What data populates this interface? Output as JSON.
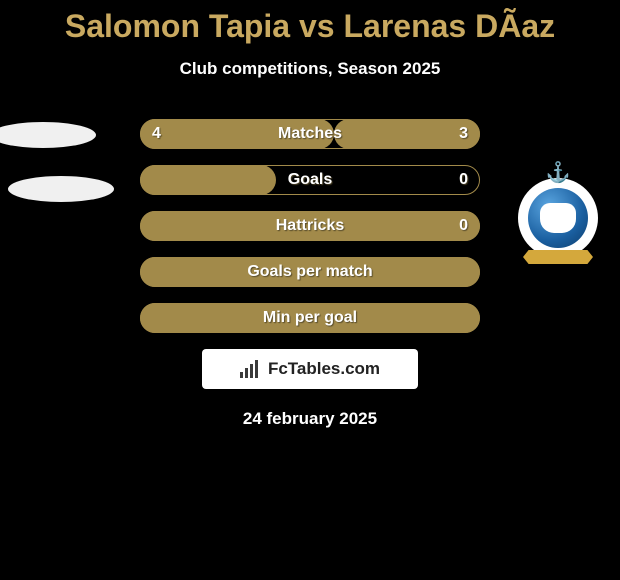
{
  "header": {
    "title": "Salomon Tapia vs Larenas DÃ­az",
    "subtitle": "Club competitions, Season 2025"
  },
  "colors": {
    "background": "#000000",
    "accent": "#c9a960",
    "bar_fill": "#a28a4a",
    "bar_border": "#a28a4a",
    "text_light": "#ffffff",
    "branding_bg": "#ffffff",
    "branding_text": "#222222"
  },
  "stats": [
    {
      "label": "Matches",
      "left_value": "4",
      "right_value": "3",
      "left_pct": 57,
      "right_pct": 43,
      "show_values": true
    },
    {
      "label": "Goals",
      "left_value": "",
      "right_value": "0",
      "left_pct": 40,
      "right_pct": 0,
      "show_values": true
    },
    {
      "label": "Hattricks",
      "left_value": "",
      "right_value": "0",
      "left_pct": 100,
      "right_pct": 0,
      "show_values": true,
      "full": true
    },
    {
      "label": "Goals per match",
      "left_value": "",
      "right_value": "",
      "left_pct": 100,
      "right_pct": 0,
      "show_values": false,
      "full": true
    },
    {
      "label": "Min per goal",
      "left_value": "",
      "right_value": "",
      "left_pct": 100,
      "right_pct": 0,
      "show_values": false,
      "full": true
    }
  ],
  "branding": {
    "text": "FcTables.com"
  },
  "footer": {
    "date": "24 february 2025"
  },
  "avatars": {
    "left_kind": "placeholder-ovals",
    "right_kind": "club-badge"
  }
}
